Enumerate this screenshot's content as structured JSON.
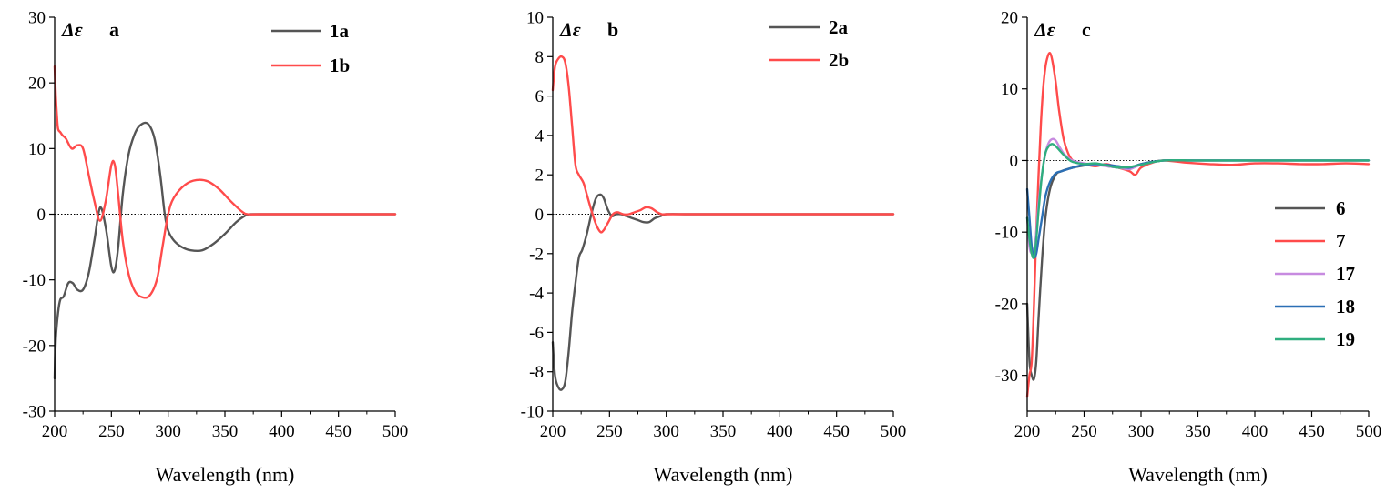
{
  "chart_data": [
    {
      "type": "line",
      "panel_label": "a",
      "ylabel": "Δε",
      "xlabel": "Wavelength (nm)",
      "xlim": [
        200,
        500
      ],
      "ylim": [
        -30,
        30
      ],
      "xticks": [
        200,
        250,
        300,
        350,
        400,
        450,
        500
      ],
      "yticks": [
        -30,
        -20,
        -10,
        0,
        10,
        20,
        30
      ],
      "zero_line": true,
      "legend_position": "top-right",
      "series": [
        {
          "name": "1a",
          "color": "#555555",
          "x": [
            200,
            201,
            203,
            205,
            208,
            212,
            216,
            220,
            225,
            230,
            235,
            240,
            245,
            250,
            253,
            256,
            260,
            265,
            270,
            275,
            282,
            288,
            293,
            297,
            300,
            305,
            312,
            320,
            330,
            340,
            350,
            360,
            368,
            372,
            380,
            400,
            450,
            500
          ],
          "y": [
            -25,
            -19,
            -15,
            -13,
            -12.5,
            -10.5,
            -10.5,
            -11.5,
            -11.5,
            -9,
            -4,
            1,
            -2,
            -8,
            -8.5,
            -5,
            3,
            9,
            12,
            13.5,
            13.8,
            11.5,
            6,
            0,
            -2.5,
            -4,
            -5,
            -5.5,
            -5.5,
            -4.5,
            -3,
            -1.2,
            -0.2,
            0,
            0,
            0,
            0,
            0
          ]
        },
        {
          "name": "1b",
          "color": "#ff4b4b",
          "x": [
            200,
            201,
            202,
            203,
            205,
            207,
            210,
            215,
            220,
            225,
            230,
            235,
            240,
            245,
            250,
            253,
            256,
            260,
            265,
            270,
            275,
            283,
            290,
            295,
            300,
            305,
            315,
            325,
            335,
            345,
            355,
            365,
            370,
            380,
            400,
            450,
            500
          ],
          "y": [
            22.5,
            18,
            15,
            13,
            12.5,
            12,
            11.5,
            10,
            10.5,
            10,
            6,
            2,
            -1,
            2,
            7.5,
            7.5,
            3,
            -4,
            -9,
            -11.5,
            -12.5,
            -12.5,
            -10,
            -5,
            0,
            2.5,
            4.5,
            5.2,
            5,
            3.8,
            2,
            0.4,
            0,
            0,
            0,
            0,
            0
          ]
        }
      ]
    },
    {
      "type": "line",
      "panel_label": "b",
      "ylabel": "Δε",
      "xlabel": "Wavelength (nm)",
      "xlim": [
        200,
        500
      ],
      "ylim": [
        -10,
        10
      ],
      "xticks": [
        200,
        250,
        300,
        350,
        400,
        450,
        500
      ],
      "yticks": [
        -10,
        -8,
        -6,
        -4,
        -2,
        0,
        2,
        4,
        6,
        8,
        10
      ],
      "zero_line": true,
      "legend_position": "top-right",
      "series": [
        {
          "name": "2a",
          "color": "#555555",
          "x": [
            200,
            202,
            205,
            208,
            211,
            214,
            217,
            220,
            223,
            226,
            230,
            234,
            238,
            242,
            245,
            248,
            252,
            256,
            260,
            265,
            270,
            275,
            280,
            285,
            290,
            295,
            300,
            320,
            350,
            400,
            450,
            500
          ],
          "y": [
            -6.5,
            -8.2,
            -8.8,
            -8.9,
            -8.5,
            -7,
            -5,
            -3.5,
            -2.2,
            -1.8,
            -1,
            0,
            0.8,
            1,
            0.8,
            0.3,
            -0.1,
            0,
            0,
            -0.1,
            -0.2,
            -0.3,
            -0.4,
            -0.4,
            -0.2,
            -0.1,
            0,
            0,
            0,
            0,
            0,
            0
          ]
        },
        {
          "name": "2b",
          "color": "#ff4b4b",
          "x": [
            200,
            202,
            205,
            208,
            211,
            214,
            217,
            220,
            223,
            227,
            230,
            234,
            238,
            242,
            245,
            249,
            253,
            257,
            262,
            267,
            272,
            277,
            282,
            287,
            292,
            296,
            300,
            320,
            350,
            400,
            450,
            500
          ],
          "y": [
            6.3,
            7.5,
            7.9,
            8,
            7.7,
            6.5,
            4.5,
            2.5,
            2,
            1.6,
            1,
            0.2,
            -0.5,
            -0.9,
            -0.8,
            -0.4,
            0,
            0.1,
            0,
            0,
            0.1,
            0.2,
            0.35,
            0.3,
            0.1,
            0,
            0,
            0,
            0,
            0,
            0,
            0
          ]
        }
      ]
    },
    {
      "type": "line",
      "panel_label": "c",
      "ylabel": "Δε",
      "xlabel": "Wavelength (nm)",
      "xlim": [
        200,
        500
      ],
      "ylim": [
        -35,
        20
      ],
      "xticks": [
        200,
        250,
        300,
        350,
        400,
        450,
        500
      ],
      "yticks": [
        -30,
        -20,
        -10,
        0,
        10,
        20
      ],
      "zero_line": true,
      "legend_position": "center-right",
      "series": [
        {
          "name": "6",
          "color": "#555555",
          "x": [
            200,
            202,
            204,
            206,
            208,
            210,
            213,
            216,
            220,
            225,
            230,
            240,
            250,
            260,
            270,
            280,
            290,
            300,
            320,
            350,
            400,
            450,
            500
          ],
          "y": [
            -20,
            -28,
            -30,
            -30.5,
            -28,
            -22,
            -14,
            -8,
            -4,
            -2,
            -1.5,
            -1,
            -0.7,
            -0.5,
            -0.8,
            -1,
            -1.2,
            -0.5,
            0,
            0,
            0,
            0,
            0
          ]
        },
        {
          "name": "7",
          "color": "#ff4b4b",
          "x": [
            200,
            202,
            204,
            206,
            208,
            210,
            212,
            214,
            216,
            218,
            220,
            222,
            225,
            228,
            232,
            236,
            240,
            245,
            250,
            260,
            270,
            280,
            290,
            295,
            300,
            310,
            320,
            340,
            360,
            380,
            400,
            420,
            440,
            460,
            480,
            500
          ],
          "y": [
            -33,
            -30,
            -28,
            -20,
            -10,
            -2,
            5,
            10,
            13,
            14.5,
            15,
            14,
            11,
            7,
            3,
            1,
            0,
            -0.3,
            -0.5,
            -0.8,
            -0.5,
            -1,
            -1.5,
            -2,
            -1,
            -0.3,
            0,
            -0.3,
            -0.5,
            -0.6,
            -0.4,
            -0.4,
            -0.5,
            -0.5,
            -0.4,
            -0.5
          ]
        },
        {
          "name": "17",
          "color": "#c78be0",
          "x": [
            200,
            202,
            204,
            206,
            208,
            210,
            213,
            216,
            219,
            222,
            225,
            228,
            232,
            236,
            240,
            250,
            260,
            270,
            280,
            290,
            300,
            320,
            350,
            400,
            450,
            500
          ],
          "y": [
            -8,
            -12,
            -13,
            -12.5,
            -10,
            -6,
            -2,
            1,
            2.5,
            3,
            2.8,
            2,
            1,
            0.4,
            0,
            -0.4,
            -0.6,
            -0.8,
            -1,
            -1.2,
            -0.6,
            0,
            0,
            0,
            0,
            0
          ]
        },
        {
          "name": "18",
          "color": "#2b6fb5",
          "x": [
            200,
            202,
            204,
            206,
            208,
            210,
            213,
            216,
            220,
            225,
            230,
            240,
            250,
            260,
            270,
            280,
            290,
            300,
            320,
            350,
            400,
            450,
            500
          ],
          "y": [
            -4,
            -8,
            -12,
            -13.5,
            -13,
            -11,
            -8,
            -5,
            -3,
            -1.8,
            -1.5,
            -1,
            -0.6,
            -0.5,
            -0.6,
            -0.8,
            -1,
            -0.5,
            0,
            0,
            0,
            0,
            0
          ]
        },
        {
          "name": "19",
          "color": "#2fae7f",
          "x": [
            200,
            202,
            204,
            206,
            208,
            210,
            213,
            216,
            219,
            222,
            225,
            228,
            232,
            236,
            240,
            250,
            260,
            270,
            280,
            290,
            300,
            320,
            350,
            400,
            450,
            500
          ],
          "y": [
            -8,
            -11,
            -13,
            -13.5,
            -11,
            -7,
            -2,
            1,
            2,
            2.3,
            2,
            1.5,
            0.8,
            0.2,
            -0.2,
            -0.5,
            -0.4,
            -0.7,
            -1,
            -0.9,
            -0.6,
            0,
            0,
            0,
            0,
            0
          ]
        }
      ]
    }
  ]
}
